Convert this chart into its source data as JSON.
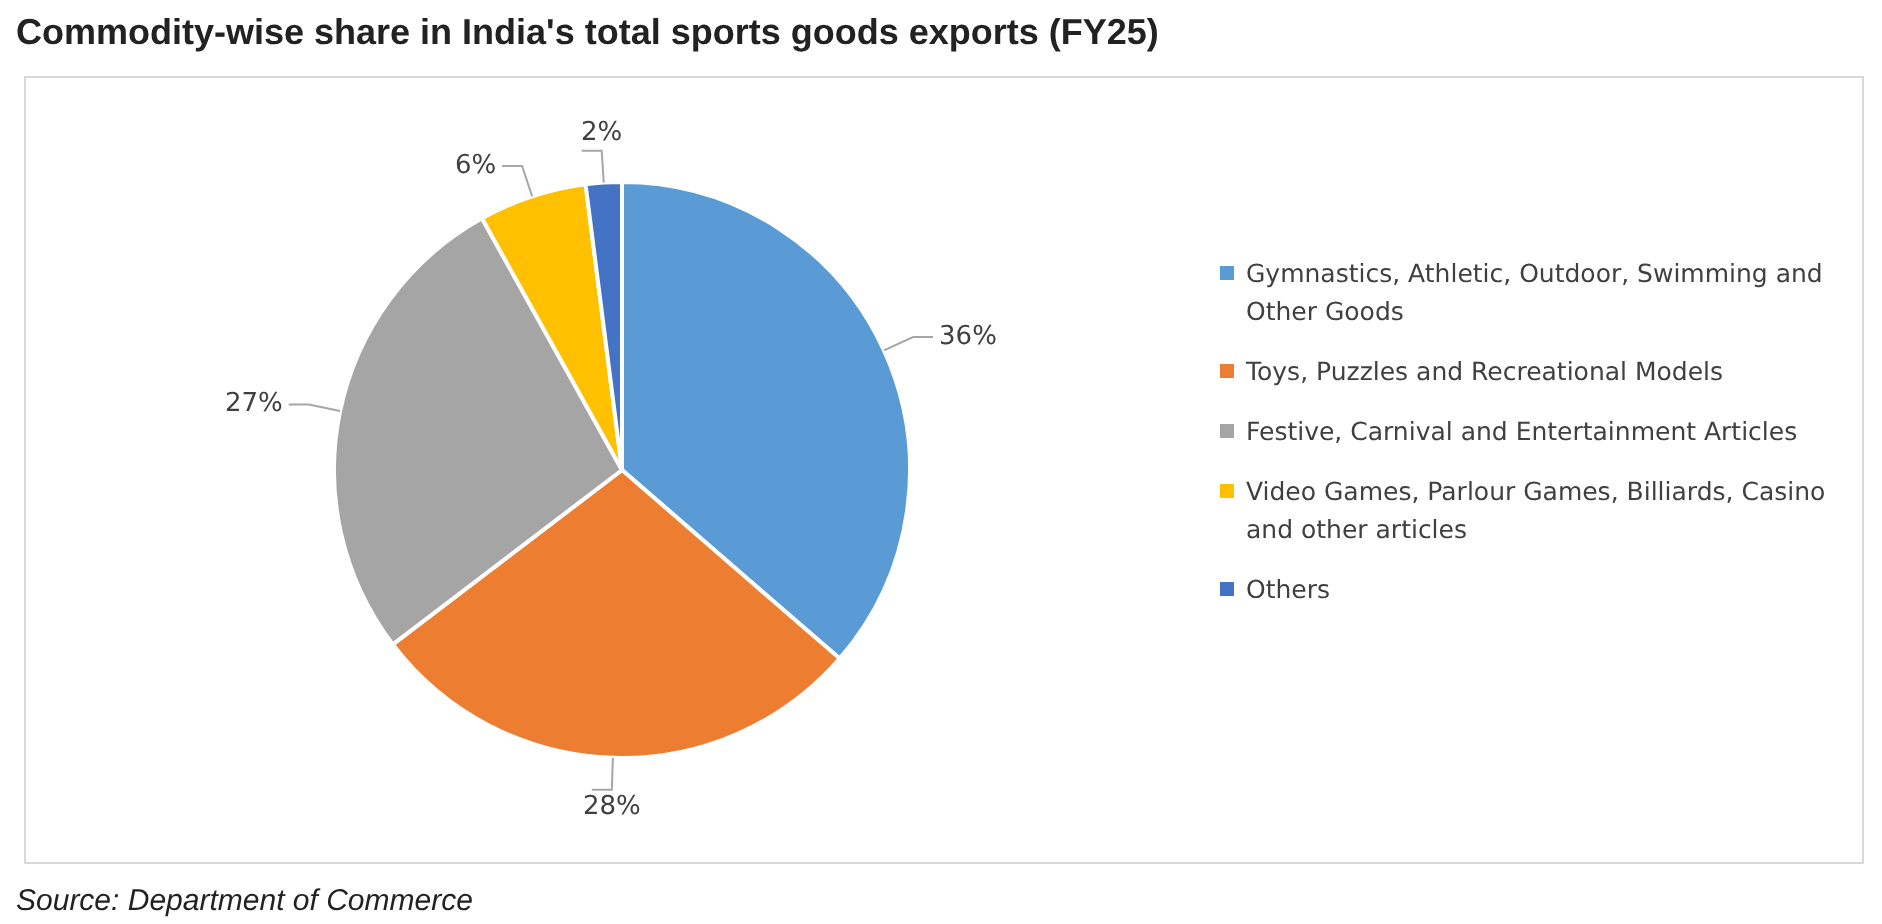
{
  "chart_data": {
    "type": "pie",
    "title": "Commodity-wise share in India's total sports goods exports (FY25)",
    "categories": [
      "Gymnastics, Athletic, Outdoor, Swimming and Other Goods",
      "Toys, Puzzles and Recreational Models",
      "Festive, Carnival and Entertainment Articles",
      "Video Games, Parlour Games, Billiards, Casino and other articles",
      "Others"
    ],
    "values": [
      36,
      28,
      27,
      6,
      2
    ],
    "value_labels": [
      "36%",
      "28%",
      "27%",
      "6%",
      "2%"
    ],
    "colors": [
      "#5b9bd5",
      "#ed7d31",
      "#a5a5a5",
      "#ffc000",
      "#4472c4"
    ],
    "legend": "right",
    "annotations": [
      "Source: Department of Commerce"
    ]
  }
}
